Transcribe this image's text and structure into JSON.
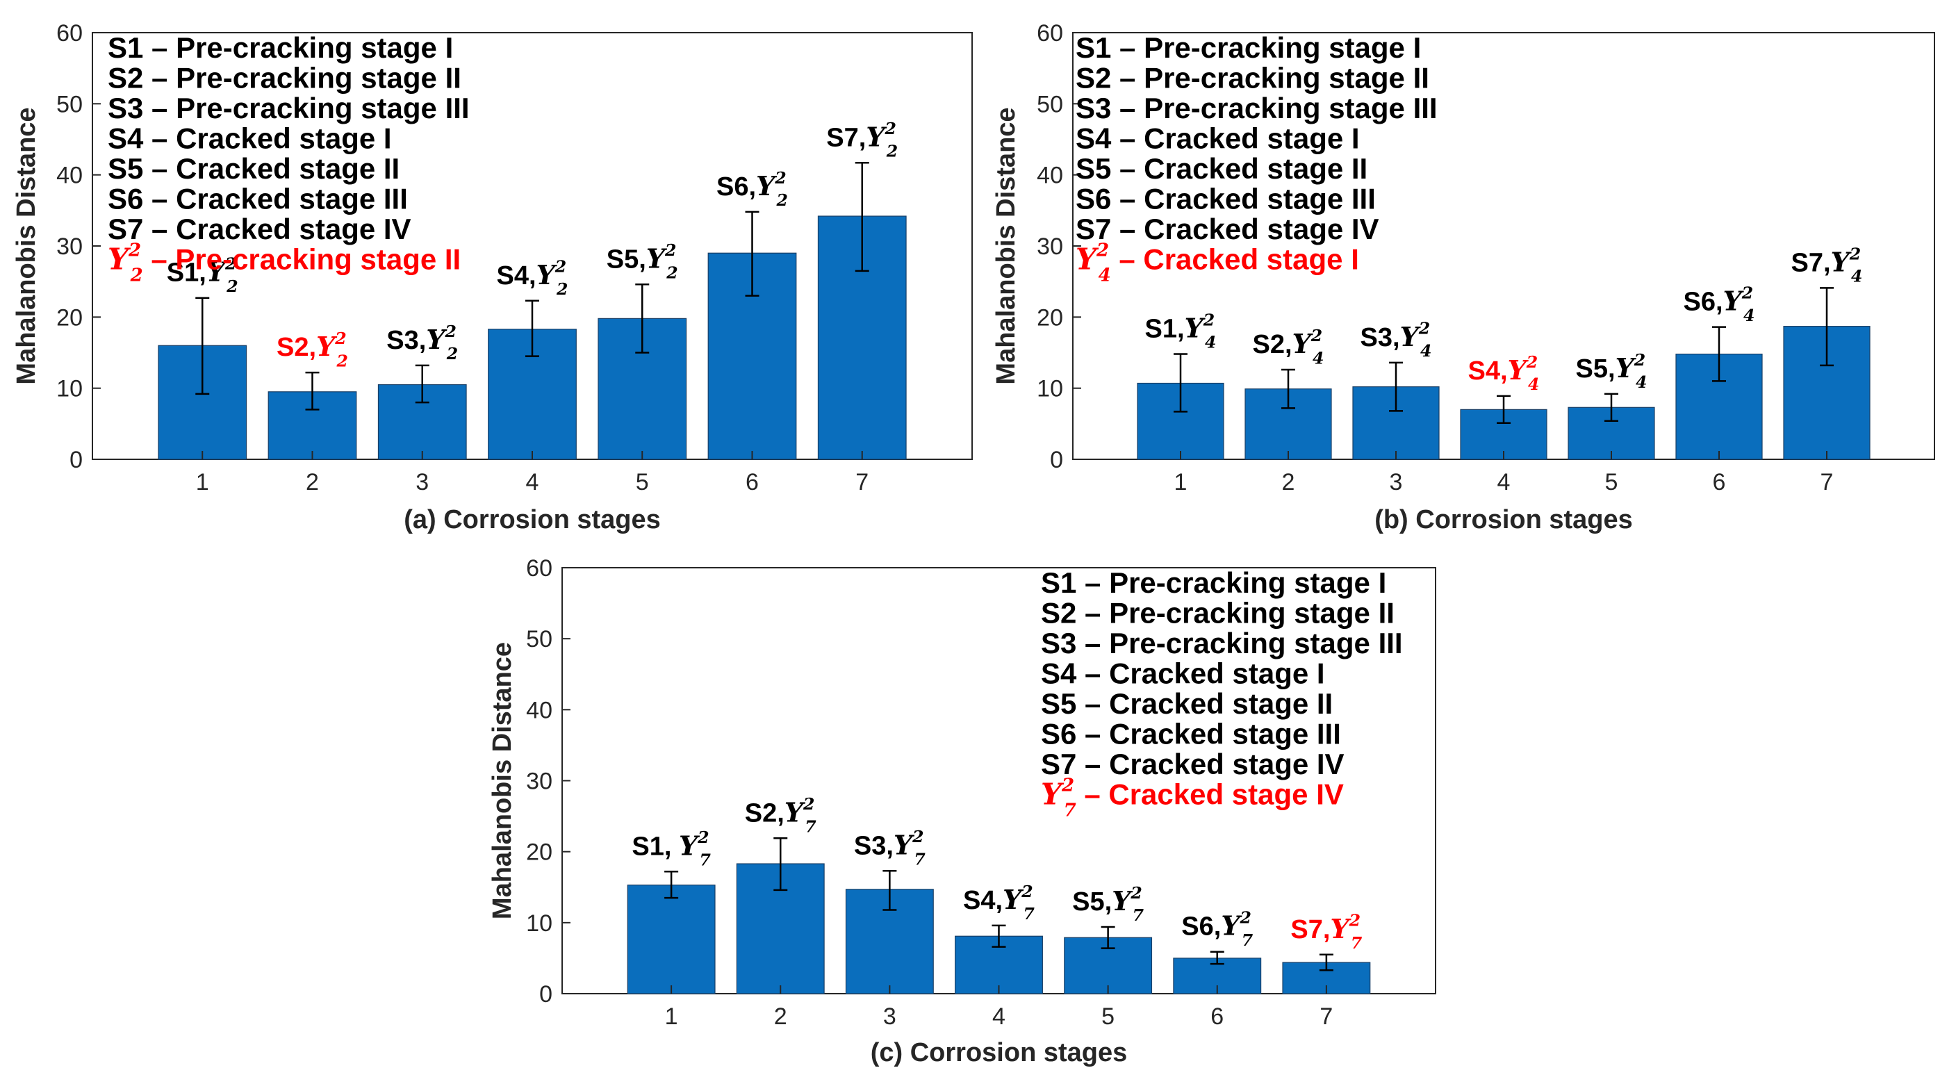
{
  "figure": {
    "background": "#ffffff",
    "bar_color": "#0a6ebd",
    "highlight_color": "#ff0000",
    "text_color": "#000000"
  },
  "chart_data": [
    {
      "type": "bar",
      "panel": "a",
      "xlabel": "(a) Corrosion stages",
      "ylabel": "Mahalanobis Distance",
      "ylim": [
        0,
        60
      ],
      "yticks": [
        "0",
        "10",
        "20",
        "30",
        "40",
        "50",
        "60"
      ],
      "categories": [
        "1",
        "2",
        "3",
        "4",
        "5",
        "6",
        "7"
      ],
      "values": [
        16,
        9.5,
        10.5,
        18.3,
        19.8,
        29,
        34.2
      ],
      "error_low": [
        9.2,
        7,
        8,
        14.5,
        15,
        23,
        26.5
      ],
      "error_high": [
        22.7,
        12.2,
        13.2,
        22.3,
        24.6,
        34.8,
        41.7
      ],
      "bar_labels": [
        {
          "stage": "S1",
          "sep": ",",
          "sym": "Y",
          "sup": "2",
          "sub": "2",
          "highlight": false
        },
        {
          "stage": "S2",
          "sep": ",",
          "sym": "Y",
          "sup": "2",
          "sub": "2",
          "highlight": true
        },
        {
          "stage": "S3",
          "sep": ",",
          "sym": "Y",
          "sup": "2",
          "sub": "2",
          "highlight": false
        },
        {
          "stage": "S4",
          "sep": ",",
          "sym": "Y",
          "sup": "2",
          "sub": "2",
          "highlight": false
        },
        {
          "stage": "S5",
          "sep": ",",
          "sym": "Y",
          "sup": "2",
          "sub": "2",
          "highlight": false
        },
        {
          "stage": "S6",
          "sep": ",",
          "sym": "Y",
          "sup": "2",
          "sub": "2",
          "highlight": false
        },
        {
          "stage": "S7",
          "sep": ",",
          "sym": "Y",
          "sup": "2",
          "sub": "2",
          "highlight": false
        }
      ],
      "legend": [
        "S1 – Pre-cracking stage I",
        "S2 – Pre-cracking stage II",
        "S3 – Pre-cracking stage III",
        "S4 – Cracked stage I",
        "S5 – Cracked stage II",
        "S6 – Cracked stage III",
        "S7 – Cracked stage IV"
      ],
      "legend_ref": {
        "sym": "Y",
        "sup": "2",
        "sub": "2",
        "text": " – Pre-cracking stage II"
      }
    },
    {
      "type": "bar",
      "panel": "b",
      "xlabel": "(b) Corrosion stages",
      "ylabel": "Mahalanobis Distance",
      "ylim": [
        0,
        60
      ],
      "yticks": [
        "0",
        "10",
        "20",
        "30",
        "40",
        "50",
        "60"
      ],
      "categories": [
        "1",
        "2",
        "3",
        "4",
        "5",
        "6",
        "7"
      ],
      "values": [
        10.7,
        9.9,
        10.2,
        7,
        7.3,
        14.8,
        18.7
      ],
      "error_low": [
        6.7,
        7.2,
        6.8,
        5.1,
        5.4,
        11,
        13.2
      ],
      "error_high": [
        14.8,
        12.6,
        13.6,
        8.9,
        9.2,
        18.6,
        24.1
      ],
      "bar_labels": [
        {
          "stage": "S1",
          "sep": ",",
          "sym": "Y",
          "sup": "2",
          "sub": "4",
          "highlight": false
        },
        {
          "stage": "S2",
          "sep": ",",
          "sym": "Y",
          "sup": "2",
          "sub": "4",
          "highlight": false
        },
        {
          "stage": "S3",
          "sep": ",",
          "sym": "Y",
          "sup": "2",
          "sub": "4",
          "highlight": false
        },
        {
          "stage": "S4",
          "sep": ",",
          "sym": "Y",
          "sup": "2",
          "sub": "4",
          "highlight": true
        },
        {
          "stage": "S5",
          "sep": ",",
          "sym": "Y",
          "sup": "2",
          "sub": "4",
          "highlight": false
        },
        {
          "stage": "S6",
          "sep": ",",
          "sym": "Y",
          "sup": "2",
          "sub": "4",
          "highlight": false
        },
        {
          "stage": "S7",
          "sep": ",",
          "sym": "Y",
          "sup": "2",
          "sub": "4",
          "highlight": false
        }
      ],
      "legend": [
        "S1 – Pre-cracking stage I",
        "S2 – Pre-cracking stage II",
        "S3 – Pre-cracking stage III",
        "S4 – Cracked stage I",
        "S5 – Cracked stage II",
        "S6 – Cracked stage III",
        "S7 – Cracked stage IV"
      ],
      "legend_ref": {
        "sym": "Y",
        "sup": "2",
        "sub": "4",
        "text": " – Cracked stage I"
      }
    },
    {
      "type": "bar",
      "panel": "c",
      "xlabel": "(c) Corrosion stages",
      "ylabel": "Mahalanobis Distance",
      "ylim": [
        0,
        60
      ],
      "yticks": [
        "0",
        "10",
        "20",
        "30",
        "40",
        "50",
        "60"
      ],
      "categories": [
        "1",
        "2",
        "3",
        "4",
        "5",
        "6",
        "7"
      ],
      "values": [
        15.3,
        18.3,
        14.7,
        8.1,
        7.9,
        5,
        4.4
      ],
      "error_low": [
        13.5,
        14.6,
        11.8,
        6.6,
        6.4,
        4.2,
        3.3
      ],
      "error_high": [
        17.2,
        21.9,
        17.3,
        9.6,
        9.4,
        5.9,
        5.5
      ],
      "bar_labels": [
        {
          "stage": "S1",
          "sep": ", ",
          "sym": "Y",
          "sup": "2",
          "sub": "7",
          "highlight": false
        },
        {
          "stage": "S2",
          "sep": ",",
          "sym": "Y",
          "sup": "2",
          "sub": "7",
          "highlight": false
        },
        {
          "stage": "S3",
          "sep": ",",
          "sym": "Y",
          "sup": "2",
          "sub": "7",
          "highlight": false
        },
        {
          "stage": "S4",
          "sep": ",",
          "sym": "Y",
          "sup": "2",
          "sub": "7",
          "highlight": false
        },
        {
          "stage": "S5",
          "sep": ",",
          "sym": "Y",
          "sup": "2",
          "sub": "7",
          "highlight": false
        },
        {
          "stage": "S6",
          "sep": ",",
          "sym": "Y",
          "sup": "2",
          "sub": "7",
          "highlight": false
        },
        {
          "stage": "S7",
          "sep": ",",
          "sym": "Y",
          "sup": "2",
          "sub": "7",
          "highlight": true
        }
      ],
      "legend": [
        "S1 – Pre-cracking stage I",
        "S2 – Pre-cracking stage II",
        "S3 – Pre-cracking stage III",
        "S4 – Cracked stage I",
        "S5 – Cracked stage II",
        "S6 – Cracked stage III",
        "S7 – Cracked stage IV"
      ],
      "legend_ref": {
        "sym": "Y",
        "sup": "2",
        "sub": "7",
        "text": " – Cracked stage IV"
      }
    }
  ]
}
